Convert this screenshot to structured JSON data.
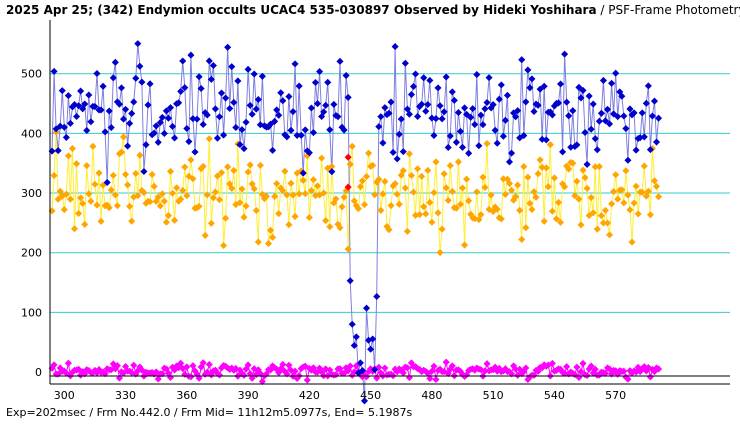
{
  "chart_data": {
    "type": "line",
    "title": "2025 Apr 25; (342) Endymion occults UCAC4 535-030897 Observed by Hideki Yoshihara",
    "subtitle": " / PSF-Frame Photometry /",
    "footer": "Exp=202msec / Frm No.442.0 / Frm Mid= 11h12m5.0977s,  End= 5.1987s",
    "x_ticks": [
      "300",
      "330",
      "360",
      "390",
      "420",
      "450",
      "480",
      "510",
      "540",
      "570"
    ],
    "y_ticks": [
      "0",
      "100",
      "200",
      "300",
      "400",
      "500"
    ],
    "xlim": [
      293,
      625
    ],
    "ylim": [
      -20,
      590
    ],
    "grid": "horizontal",
    "event": {
      "start_frame": 440,
      "end_frame": 453,
      "target_level": 30,
      "star_level": 20
    },
    "colors": {
      "target_combined": "#0000cc",
      "target_line": "#7f7fe0",
      "comparison": "#ffa500",
      "comparison_line": "#ffee33",
      "background": "#ff00ff",
      "highlight": "#ff0000",
      "grid": "#33cccc"
    },
    "series": [
      {
        "name": "",
        "color": "#0000cc",
        "level_mean": 440,
        "level_sd": 45
      },
      {
        "name": "",
        "color": "#ffa500",
        "level_mean": 298,
        "level_sd": 38
      },
      {
        "name": "",
        "color": "#ff00ff",
        "level_mean": 2,
        "level_sd": 6
      }
    ]
  }
}
